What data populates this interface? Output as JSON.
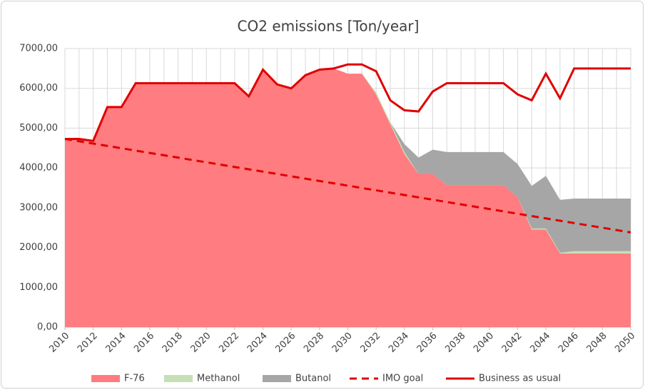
{
  "chart_data": {
    "type": "area",
    "title": "CO2 emissions [Ton/year]",
    "x": [
      2010,
      2011,
      2012,
      2013,
      2014,
      2015,
      2016,
      2017,
      2018,
      2019,
      2020,
      2021,
      2022,
      2023,
      2024,
      2025,
      2026,
      2027,
      2028,
      2029,
      2030,
      2031,
      2032,
      2033,
      2034,
      2035,
      2036,
      2037,
      2038,
      2039,
      2040,
      2041,
      2042,
      2043,
      2044,
      2045,
      2046,
      2047,
      2048,
      2049,
      2050
    ],
    "xlim": [
      2010,
      2050
    ],
    "xticks": [
      2010,
      2012,
      2014,
      2016,
      2018,
      2020,
      2022,
      2024,
      2026,
      2028,
      2030,
      2032,
      2034,
      2036,
      2038,
      2040,
      2042,
      2044,
      2046,
      2048,
      2050
    ],
    "ylim": [
      0,
      7000
    ],
    "yticks": [
      {
        "value": 0,
        "label": "0,00"
      },
      {
        "value": 1000,
        "label": "1000,00"
      },
      {
        "value": 2000,
        "label": "2000,00"
      },
      {
        "value": 3000,
        "label": "3000,00"
      },
      {
        "value": 4000,
        "label": "4000,00"
      },
      {
        "value": 5000,
        "label": "5000,00"
      },
      {
        "value": 6000,
        "label": "6000,00"
      },
      {
        "value": 7000,
        "label": "7000,00"
      }
    ],
    "grid": true,
    "legend": "bottom",
    "stacked": true,
    "series": [
      {
        "name": "F-76",
        "kind": "area",
        "color": "#ff7c80",
        "values": [
          4730,
          4730,
          4680,
          5530,
          5530,
          6130,
          6130,
          6130,
          6130,
          6130,
          6130,
          6130,
          6130,
          5800,
          6470,
          6100,
          6000,
          6330,
          6470,
          6500,
          6370,
          6370,
          5850,
          5100,
          4350,
          3850,
          3850,
          3570,
          3570,
          3570,
          3570,
          3570,
          3270,
          2450,
          2450,
          1850,
          1850,
          1850,
          1850,
          1850,
          1850
        ]
      },
      {
        "name": "Methanol",
        "kind": "area",
        "color": "#c5e0b4",
        "values": [
          0,
          0,
          0,
          0,
          0,
          0,
          0,
          0,
          0,
          0,
          0,
          0,
          0,
          0,
          0,
          0,
          0,
          0,
          0,
          0,
          0,
          0,
          50,
          50,
          50,
          0,
          0,
          0,
          0,
          0,
          0,
          0,
          0,
          30,
          30,
          20,
          60,
          60,
          60,
          60,
          60
        ]
      },
      {
        "name": "Butanol",
        "kind": "area",
        "color": "#a6a6a6",
        "values": [
          0,
          0,
          0,
          0,
          0,
          0,
          0,
          0,
          0,
          0,
          0,
          0,
          0,
          0,
          0,
          0,
          0,
          0,
          0,
          0,
          0,
          0,
          0,
          0,
          200,
          410,
          610,
          830,
          830,
          830,
          830,
          830,
          830,
          1070,
          1320,
          1330,
          1320,
          1320,
          1320,
          1320,
          1320
        ]
      },
      {
        "name": "IMO goal",
        "kind": "line",
        "dashed": true,
        "color": "#e00000",
        "values": [
          4730,
          4671,
          4613,
          4554,
          4495,
          4436,
          4378,
          4319,
          4260,
          4201,
          4143,
          4084,
          4025,
          3966,
          3908,
          3849,
          3790,
          3731,
          3673,
          3614,
          3555,
          3496,
          3438,
          3379,
          3320,
          3261,
          3203,
          3144,
          3085,
          3026,
          2968,
          2909,
          2850,
          2791,
          2733,
          2674,
          2615,
          2556,
          2498,
          2439,
          2380
        ]
      },
      {
        "name": "Business as usual",
        "kind": "line",
        "dashed": false,
        "color": "#e00000",
        "values": [
          4730,
          4730,
          4680,
          5530,
          5530,
          6130,
          6130,
          6130,
          6130,
          6130,
          6130,
          6130,
          6130,
          5800,
          6470,
          6100,
          6000,
          6330,
          6470,
          6500,
          6600,
          6600,
          6430,
          5700,
          5450,
          5420,
          5920,
          6130,
          6130,
          6130,
          6130,
          6130,
          5850,
          5700,
          6370,
          5750,
          6500,
          6500,
          6500,
          6500,
          6500
        ]
      }
    ]
  }
}
